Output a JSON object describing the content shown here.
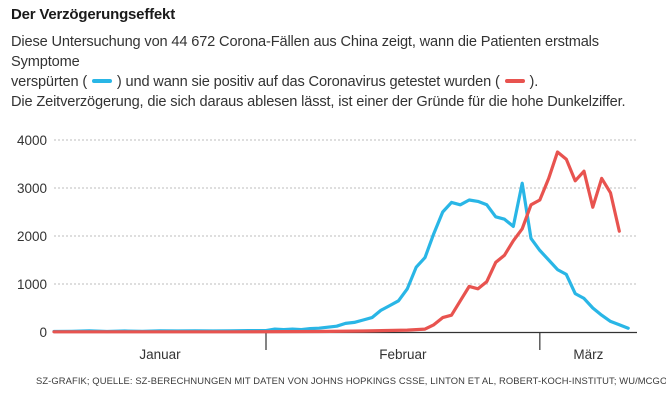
{
  "header": {
    "title": "Der Verzögerungseffekt",
    "line1": "Diese Untersuchung von 44 672 Corona-Fällen aus China zeigt, wann die Patienten erstmals Symptome",
    "line2_a": "verspürten (",
    "line2_b": ") und wann sie positiv auf das Coronavirus getestet wurden (",
    "line2_c": ").",
    "line3": "Die Zeitverzögerung, die sich daraus ablesen lässt, ist einer der Gründe für die hohe Dunkelziffer."
  },
  "source": "SZ-GRAFIK; QUELLE: SZ-BERECHNUNGEN MIT DATEN VON JOHNS HOPKINGS CSSE, LINTON ET AL, ROBERT-KOCH-INSTITUT; WU/MCGOOGAN",
  "colors": {
    "symptoms": "#29b6e6",
    "tested": "#e8534f",
    "axis": "#333333",
    "grid": "#bdbdbd"
  },
  "chart_data": {
    "type": "line",
    "title": "Der Verzögerungseffekt",
    "ylim": [
      0,
      4000
    ],
    "yticks": [
      {
        "value": 0,
        "label": "0"
      },
      {
        "value": 1000,
        "label": "1000"
      },
      {
        "value": 2000,
        "label": "2000"
      },
      {
        "value": 3000,
        "label": "3000"
      },
      {
        "value": 4000,
        "label": "4000"
      }
    ],
    "x_range": [
      0,
      66
    ],
    "month_separators": [
      24,
      55
    ],
    "month_labels": [
      {
        "label": "Januar",
        "x": 12
      },
      {
        "label": "Februar",
        "x": 39.5
      },
      {
        "label": "März",
        "x": 60.5
      }
    ],
    "series": [
      {
        "key": "symptoms",
        "color": "#29b6e6",
        "points": [
          [
            0,
            10
          ],
          [
            2,
            15
          ],
          [
            4,
            25
          ],
          [
            6,
            10
          ],
          [
            8,
            20
          ],
          [
            10,
            15
          ],
          [
            12,
            25
          ],
          [
            14,
            20
          ],
          [
            16,
            25
          ],
          [
            18,
            20
          ],
          [
            20,
            25
          ],
          [
            22,
            30
          ],
          [
            24,
            30
          ],
          [
            25,
            60
          ],
          [
            26,
            50
          ],
          [
            27,
            60
          ],
          [
            28,
            50
          ],
          [
            29,
            70
          ],
          [
            30,
            80
          ],
          [
            31,
            100
          ],
          [
            32,
            120
          ],
          [
            33,
            180
          ],
          [
            34,
            200
          ],
          [
            35,
            250
          ],
          [
            36,
            300
          ],
          [
            37,
            450
          ],
          [
            38,
            550
          ],
          [
            39,
            650
          ],
          [
            40,
            900
          ],
          [
            41,
            1350
          ],
          [
            42,
            1550
          ],
          [
            43,
            2050
          ],
          [
            44,
            2500
          ],
          [
            45,
            2700
          ],
          [
            46,
            2650
          ],
          [
            47,
            2750
          ],
          [
            48,
            2720
          ],
          [
            49,
            2650
          ],
          [
            50,
            2400
          ],
          [
            51,
            2350
          ],
          [
            52,
            2200
          ],
          [
            53,
            3100
          ],
          [
            54,
            1950
          ],
          [
            55,
            1700
          ],
          [
            56,
            1500
          ],
          [
            57,
            1300
          ],
          [
            58,
            1200
          ],
          [
            59,
            800
          ],
          [
            60,
            700
          ],
          [
            61,
            500
          ],
          [
            62,
            350
          ],
          [
            63,
            220
          ],
          [
            64,
            150
          ],
          [
            65,
            80
          ]
        ]
      },
      {
        "key": "tested",
        "color": "#e8534f",
        "points": [
          [
            0,
            5
          ],
          [
            10,
            5
          ],
          [
            20,
            5
          ],
          [
            30,
            10
          ],
          [
            35,
            20
          ],
          [
            40,
            40
          ],
          [
            42,
            60
          ],
          [
            43,
            150
          ],
          [
            44,
            300
          ],
          [
            45,
            350
          ],
          [
            46,
            650
          ],
          [
            47,
            950
          ],
          [
            48,
            900
          ],
          [
            49,
            1050
          ],
          [
            50,
            1450
          ],
          [
            51,
            1600
          ],
          [
            52,
            1900
          ],
          [
            53,
            2150
          ],
          [
            54,
            2650
          ],
          [
            55,
            2750
          ],
          [
            56,
            3200
          ],
          [
            57,
            3750
          ],
          [
            58,
            3600
          ],
          [
            59,
            3150
          ],
          [
            60,
            3350
          ],
          [
            61,
            2600
          ],
          [
            62,
            3200
          ],
          [
            63,
            2900
          ],
          [
            64,
            2100
          ]
        ]
      }
    ]
  }
}
